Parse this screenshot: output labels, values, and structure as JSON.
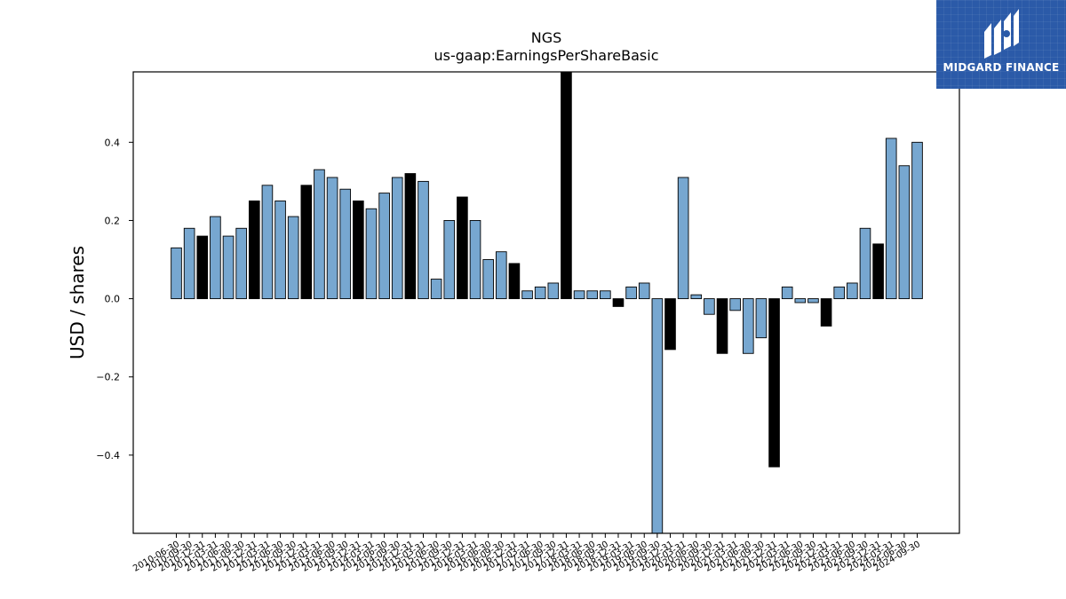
{
  "brand": {
    "name": "MIDGARD FINANCE",
    "background": "#2b5aa8"
  },
  "chart_data": {
    "type": "bar",
    "title": "NGS",
    "subtitle": "us-gaap:EarningsPerShareBasic",
    "ylabel": "USD / shares",
    "xlabel": "",
    "ylim": [
      -0.6,
      0.58
    ],
    "yticks": [
      -0.4,
      -0.2,
      0.0,
      0.2,
      0.4
    ],
    "grid": false,
    "colors": {
      "quarterly": "#77a7d0",
      "annual": "#000000",
      "edge": "#000000"
    },
    "x": [
      "2010-06-30",
      "2010-09-30",
      "2010-12-31",
      "2011-03-31",
      "2011-06-30",
      "2011-09-30",
      "2011-12-31",
      "2012-03-31",
      "2012-06-30",
      "2012-09-30",
      "2012-12-31",
      "2013-03-31",
      "2013-06-30",
      "2013-09-30",
      "2013-12-31",
      "2014-03-31",
      "2014-06-30",
      "2014-09-30",
      "2014-12-31",
      "2015-03-31",
      "2015-06-30",
      "2015-09-30",
      "2015-12-31",
      "2016-03-31",
      "2016-06-30",
      "2016-09-30",
      "2016-12-31",
      "2017-03-31",
      "2017-06-30",
      "2017-09-30",
      "2017-12-31",
      "2018-03-31",
      "2018-06-30",
      "2018-09-30",
      "2018-12-31",
      "2019-03-31",
      "2019-06-30",
      "2019-09-30",
      "2019-12-31",
      "2020-03-31",
      "2020-06-30",
      "2020-09-30",
      "2020-12-31",
      "2021-03-31",
      "2021-06-30",
      "2021-09-30",
      "2021-12-31",
      "2022-03-31",
      "2022-06-30",
      "2022-09-30",
      "2022-12-31",
      "2023-03-31",
      "2023-06-30",
      "2023-09-30",
      "2023-12-31",
      "2024-03-31",
      "2024-06-30",
      "2024-09-30"
    ],
    "values": [
      0.13,
      0.18,
      0.16,
      0.21,
      0.16,
      0.18,
      0.25,
      0.29,
      0.25,
      0.21,
      0.29,
      0.33,
      0.31,
      0.28,
      0.25,
      0.23,
      0.27,
      0.31,
      0.32,
      0.3,
      0.05,
      0.2,
      0.26,
      0.2,
      0.1,
      0.12,
      0.09,
      0.02,
      0.03,
      0.04,
      0.61,
      0.02,
      0.02,
      0.02,
      -0.02,
      0.03,
      0.04,
      -0.62,
      -0.13,
      0.31,
      0.01,
      -0.04,
      -0.14,
      -0.03,
      -0.14,
      -0.1,
      -0.43,
      0.03,
      -0.01,
      -0.01,
      -0.07,
      0.03,
      0.04,
      0.18,
      0.14,
      0.41,
      0.34,
      0.4
    ],
    "annual": [
      false,
      false,
      true,
      false,
      false,
      false,
      true,
      false,
      false,
      false,
      true,
      false,
      false,
      false,
      true,
      false,
      false,
      false,
      true,
      false,
      false,
      false,
      true,
      false,
      false,
      false,
      true,
      false,
      false,
      false,
      true,
      false,
      false,
      false,
      true,
      false,
      false,
      false,
      true,
      false,
      false,
      false,
      true,
      false,
      false,
      false,
      true,
      false,
      false,
      false,
      true,
      false,
      false,
      false,
      true,
      false,
      false,
      false
    ]
  }
}
